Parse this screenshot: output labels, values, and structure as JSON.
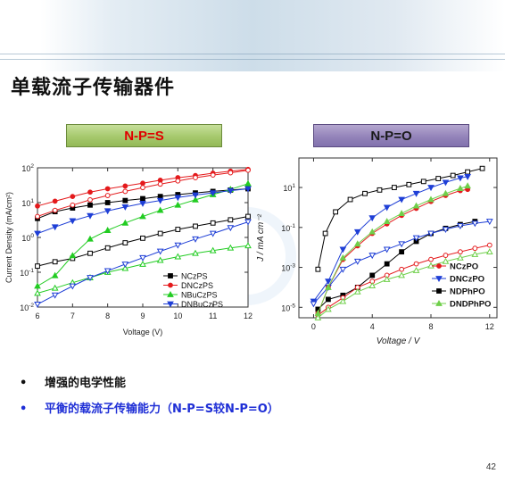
{
  "slide": {
    "title": "单载流子传输器件",
    "tag_left": "N-P=S",
    "tag_right": "N-P=O",
    "bullets": [
      "增强的电学性能",
      "平衡的载流子传输能力（N-P=S较N-P=O）"
    ],
    "page_number": "42",
    "bullet_glyph": "•"
  },
  "chart_data": [
    {
      "type": "line",
      "xlabel": "Voltage (V)",
      "ylabel": "Current Density (mA/cm²)",
      "yscale": "log",
      "xlim": [
        6,
        12
      ],
      "ylim": [
        0.01,
        100
      ],
      "x_ticks": [
        "6",
        "7",
        "8",
        "9",
        "10",
        "11",
        "12"
      ],
      "y_ticks": [
        {
          "v": 100,
          "base": "10",
          "exp": "2"
        },
        {
          "v": 10,
          "base": "10",
          "exp": "1"
        },
        {
          "v": 1,
          "base": "10",
          "exp": "0"
        },
        {
          "v": 0.1,
          "base": "10",
          "exp": "-1"
        },
        {
          "v": 0.01,
          "base": "10",
          "exp": "-2"
        }
      ],
      "legend_position": "lower-right",
      "series": [
        {
          "name": "NCzPS",
          "color": "#000000",
          "marker": "square",
          "fill": "filled",
          "x": [
            6,
            6.5,
            7,
            7.5,
            8,
            8.5,
            9,
            9.5,
            10,
            10.5,
            11,
            11.5,
            12
          ],
          "y": [
            3.5,
            5.5,
            7,
            8.5,
            10,
            11.5,
            13,
            15,
            17,
            19,
            21,
            23,
            25
          ]
        },
        {
          "name": "NCzPS",
          "color": "#000000",
          "marker": "square",
          "fill": "open",
          "x": [
            6,
            6.5,
            7,
            7.5,
            8,
            8.5,
            9,
            9.5,
            10,
            10.5,
            11,
            11.5,
            12
          ],
          "y": [
            0.15,
            0.2,
            0.25,
            0.35,
            0.5,
            0.7,
            0.95,
            1.3,
            1.7,
            2.1,
            2.6,
            3.2,
            4
          ]
        },
        {
          "name": "DNCzPS",
          "color": "#e41a1c",
          "marker": "circle",
          "fill": "filled",
          "x": [
            6,
            6.5,
            7,
            7.5,
            8,
            8.5,
            9,
            9.5,
            10,
            10.5,
            11,
            11.5,
            12
          ],
          "y": [
            8,
            11,
            15,
            20,
            25,
            30,
            36,
            44,
            52,
            60,
            70,
            80,
            90
          ]
        },
        {
          "name": "DNCzPS",
          "color": "#e41a1c",
          "marker": "circle",
          "fill": "open",
          "x": [
            6,
            6.5,
            7,
            7.5,
            8,
            8.5,
            9,
            9.5,
            10,
            10.5,
            11,
            11.5,
            12
          ],
          "y": [
            4,
            6,
            8.5,
            12,
            16,
            21,
            27,
            34,
            42,
            52,
            62,
            72,
            85
          ]
        },
        {
          "name": "NBuCzPS",
          "color": "#22cc22",
          "marker": "triangle-up",
          "fill": "filled",
          "x": [
            6,
            6.5,
            7,
            7.5,
            8,
            8.5,
            9,
            9.5,
            10,
            10.5,
            11,
            11.5,
            12
          ],
          "y": [
            0.04,
            0.08,
            0.3,
            0.9,
            1.6,
            2.6,
            4,
            6,
            8.5,
            12,
            17,
            24,
            35
          ]
        },
        {
          "name": "NBuCzPS",
          "color": "#22cc22",
          "marker": "triangle-up",
          "fill": "open",
          "x": [
            6,
            6.5,
            7,
            7.5,
            8,
            8.5,
            9,
            9.5,
            10,
            10.5,
            11,
            11.5,
            12
          ],
          "y": [
            0.025,
            0.035,
            0.05,
            0.07,
            0.1,
            0.13,
            0.17,
            0.22,
            0.28,
            0.35,
            0.42,
            0.5,
            0.58
          ]
        },
        {
          "name": "DNBuCzPS",
          "color": "#1f3fd6",
          "marker": "triangle-down",
          "fill": "filled",
          "x": [
            6,
            6.5,
            7,
            7.5,
            8,
            8.5,
            9,
            9.5,
            10,
            10.5,
            11,
            11.5,
            12
          ],
          "y": [
            1.3,
            2,
            3,
            4.2,
            5.8,
            7.5,
            9.5,
            11.5,
            14,
            16.5,
            19,
            22,
            25
          ]
        },
        {
          "name": "DNBuCzPS",
          "color": "#1f3fd6",
          "marker": "triangle-down",
          "fill": "open",
          "x": [
            6,
            6.5,
            7,
            7.5,
            8,
            8.5,
            9,
            9.5,
            10,
            10.5,
            11,
            11.5,
            12
          ],
          "y": [
            0.012,
            0.022,
            0.04,
            0.07,
            0.11,
            0.17,
            0.26,
            0.4,
            0.6,
            0.9,
            1.3,
            1.9,
            2.8
          ]
        }
      ],
      "legend": [
        {
          "name": "NCzPS",
          "color": "#000000",
          "marker": "square"
        },
        {
          "name": "DNCzPS",
          "color": "#e41a1c",
          "marker": "circle"
        },
        {
          "name": "NBuCzPS",
          "color": "#22cc22",
          "marker": "triangle-up"
        },
        {
          "name": "DNBuCzPS",
          "color": "#1f3fd6",
          "marker": "triangle-down"
        }
      ]
    },
    {
      "type": "line",
      "xlabel": "Voltage / V",
      "ylabel": "J / mA cm⁻²",
      "yscale": "log",
      "xlim": [
        -1,
        12.5
      ],
      "ylim": [
        3e-06,
        300
      ],
      "x_ticks": [
        "0",
        "4",
        "8",
        "12"
      ],
      "y_ticks": [
        {
          "v": 10,
          "base": "10",
          "exp": "1"
        },
        {
          "v": 0.1,
          "base": "10",
          "exp": "-1"
        },
        {
          "v": 0.001,
          "base": "10",
          "exp": "-3"
        },
        {
          "v": 1e-05,
          "base": "10",
          "exp": "-5"
        }
      ],
      "legend_position": "lower-right",
      "series": [
        {
          "name": "NDPhPO",
          "color": "#000000",
          "marker": "square",
          "fill": "open",
          "x": [
            0.3,
            0.8,
            1.5,
            2.5,
            3.5,
            4.5,
            5.5,
            6.5,
            7.5,
            8.5,
            9.5,
            10.5,
            11.5
          ],
          "y": [
            0.0008,
            0.05,
            0.6,
            2.5,
            5,
            7.5,
            10,
            14,
            20,
            28,
            40,
            60,
            90
          ]
        },
        {
          "name": "NDPhPO",
          "color": "#000000",
          "marker": "square",
          "fill": "filled",
          "x": [
            0.3,
            1,
            2,
            3,
            4,
            5,
            6,
            7,
            8,
            9,
            10,
            11
          ],
          "y": [
            8e-06,
            2.5e-05,
            4e-05,
            0.0001,
            0.0004,
            0.0015,
            0.006,
            0.02,
            0.05,
            0.09,
            0.14,
            0.2
          ]
        },
        {
          "name": "DNCzPO",
          "color": "#1f3fd6",
          "marker": "triangle-down",
          "fill": "filled",
          "x": [
            0,
            1,
            2,
            3,
            4,
            5,
            6,
            7,
            8,
            9,
            10,
            10.5
          ],
          "y": [
            2e-05,
            0.0002,
            0.008,
            0.06,
            0.3,
            1,
            2.5,
            5,
            10,
            18,
            30,
            35
          ]
        },
        {
          "name": "DNCzPO",
          "color": "#1f3fd6",
          "marker": "triangle-down",
          "fill": "open",
          "x": [
            0,
            1,
            2,
            3,
            4,
            5,
            6,
            7,
            8,
            9,
            10,
            11,
            12
          ],
          "y": [
            1.5e-05,
            0.0001,
            0.0008,
            0.002,
            0.004,
            0.008,
            0.015,
            0.03,
            0.05,
            0.08,
            0.12,
            0.16,
            0.2
          ]
        },
        {
          "name": "NCzPO",
          "color": "#e41a1c",
          "marker": "circle",
          "fill": "filled",
          "x": [
            0.3,
            1,
            2,
            3,
            4,
            5,
            6,
            7,
            8,
            9,
            10,
            10.5
          ],
          "y": [
            5e-06,
            0.0001,
            0.0025,
            0.012,
            0.05,
            0.15,
            0.4,
            0.9,
            2,
            4,
            7,
            8
          ]
        },
        {
          "name": "NCzPO",
          "color": "#e41a1c",
          "marker": "circle",
          "fill": "open",
          "x": [
            0.3,
            1,
            2,
            3,
            4,
            5,
            6,
            7,
            8,
            9,
            10,
            11,
            12
          ],
          "y": [
            4e-06,
            1e-05,
            3e-05,
            0.0001,
            0.0002,
            0.0004,
            0.0008,
            0.0015,
            0.0025,
            0.004,
            0.006,
            0.009,
            0.013
          ]
        },
        {
          "name": "DNDPhPO",
          "color": "#6fcf4a",
          "marker": "triangle-up",
          "fill": "filled",
          "x": [
            0.3,
            1,
            2,
            3,
            4,
            5,
            6,
            7,
            8,
            9,
            10,
            10.5
          ],
          "y": [
            5e-06,
            0.0001,
            0.003,
            0.015,
            0.06,
            0.2,
            0.5,
            1.2,
            2.5,
            5,
            9,
            12
          ]
        },
        {
          "name": "DNDPhPO",
          "color": "#6fcf4a",
          "marker": "triangle-up",
          "fill": "open",
          "x": [
            0.3,
            1,
            2,
            3,
            4,
            5,
            6,
            7,
            8,
            9,
            10,
            11,
            12
          ],
          "y": [
            3e-06,
            8e-06,
            2e-05,
            6e-05,
            0.00012,
            0.00025,
            0.0004,
            0.0007,
            0.0012,
            0.002,
            0.003,
            0.0045,
            0.006
          ]
        }
      ],
      "legend": [
        {
          "name": "NCzPO",
          "color": "#e41a1c",
          "marker": "circle"
        },
        {
          "name": "DNCzPO",
          "color": "#1f3fd6",
          "marker": "triangle-down"
        },
        {
          "name": "NDPhPO",
          "color": "#000000",
          "marker": "square"
        },
        {
          "name": "DNDPhPO",
          "color": "#6fcf4a",
          "marker": "triangle-up"
        }
      ]
    }
  ]
}
